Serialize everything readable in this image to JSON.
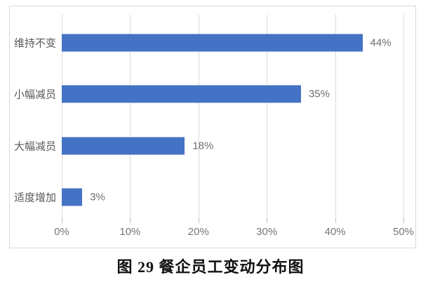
{
  "figure": {
    "caption": "图 29 餐企员工变动分布图"
  },
  "chart_data": {
    "type": "bar",
    "orientation": "horizontal",
    "title": "",
    "xlabel": "",
    "ylabel": "",
    "categories": [
      "维持不变",
      "小幅减员",
      "大幅减员",
      "适度增加"
    ],
    "values": [
      44,
      35,
      18,
      3
    ],
    "data_labels": [
      "44%",
      "35%",
      "18%",
      "3%"
    ],
    "x_ticks": [
      {
        "value": 0,
        "label": "0%"
      },
      {
        "value": 10,
        "label": "10%"
      },
      {
        "value": 20,
        "label": "20%"
      },
      {
        "value": 30,
        "label": "30%"
      },
      {
        "value": 40,
        "label": "40%"
      },
      {
        "value": 50,
        "label": "50%"
      }
    ],
    "xlim": [
      0,
      50
    ],
    "grid": true,
    "legend": "none",
    "colors": {
      "bar": "#4472C4",
      "gridline": "#d9d9d9",
      "tick": "#bfbfbf",
      "frame_border": "#d9d9d9",
      "category_text": "#595959",
      "value_text": "#6e6e6e",
      "tick_text": "#757575",
      "caption_text": "#111111"
    }
  }
}
